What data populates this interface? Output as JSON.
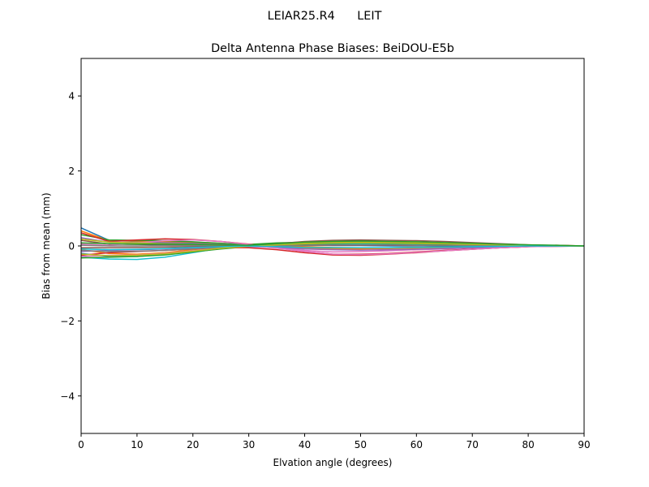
{
  "chart_data": {
    "type": "line",
    "suptitle": "LEIAR25.R4      LEIT",
    "title": "Delta Antenna Phase Biases: BeiDOU-E5b",
    "xlabel": "Elvation angle (degrees)",
    "ylabel": "Bias from mean (mm)",
    "xlim": [
      0,
      90
    ],
    "ylim": [
      -5,
      5
    ],
    "xticks": [
      0,
      10,
      20,
      30,
      40,
      50,
      60,
      70,
      80,
      90
    ],
    "xtick_labels": [
      "0",
      "10",
      "20",
      "30",
      "40",
      "50",
      "60",
      "70",
      "80",
      "90"
    ],
    "yticks": [
      -4,
      -2,
      0,
      2,
      4
    ],
    "ytick_labels": [
      "−4",
      "−2",
      "0",
      "2",
      "4"
    ],
    "grid": false,
    "legend": "none",
    "x": [
      0,
      5,
      10,
      15,
      20,
      25,
      30,
      35,
      40,
      45,
      50,
      55,
      60,
      65,
      70,
      75,
      80,
      85,
      90
    ],
    "series": [
      {
        "color": "#1f77b4",
        "values": [
          0.48,
          0.15,
          0.12,
          0.1,
          0.08,
          0.05,
          0.02,
          -0.02,
          -0.05,
          -0.07,
          -0.06,
          -0.05,
          -0.04,
          -0.03,
          -0.02,
          -0.01,
          0.0,
          0.0,
          0.0
        ]
      },
      {
        "color": "#ff7f0e",
        "values": [
          0.4,
          0.14,
          0.13,
          0.12,
          0.1,
          0.07,
          0.03,
          0.01,
          -0.02,
          -0.04,
          -0.05,
          -0.05,
          -0.04,
          -0.03,
          -0.02,
          -0.01,
          0.0,
          0.0,
          0.0
        ]
      },
      {
        "color": "#2ca02c",
        "values": [
          0.3,
          0.16,
          0.15,
          0.14,
          0.11,
          0.07,
          0.04,
          0.08,
          0.1,
          0.12,
          0.12,
          0.11,
          0.1,
          0.08,
          0.06,
          0.04,
          0.02,
          0.01,
          0.0
        ]
      },
      {
        "color": "#d62728",
        "values": [
          0.35,
          0.12,
          0.16,
          0.19,
          0.17,
          0.12,
          0.05,
          -0.05,
          -0.15,
          -0.22,
          -0.22,
          -0.2,
          -0.16,
          -0.12,
          -0.08,
          -0.05,
          -0.02,
          0.02,
          0.0
        ]
      },
      {
        "color": "#9467bd",
        "values": [
          0.22,
          0.1,
          0.09,
          0.08,
          0.06,
          0.04,
          0.02,
          0.05,
          0.08,
          0.1,
          0.11,
          0.1,
          0.09,
          0.07,
          0.05,
          0.03,
          0.02,
          0.01,
          0.0
        ]
      },
      {
        "color": "#8c564b",
        "values": [
          0.15,
          0.05,
          0.04,
          0.03,
          0.02,
          0.01,
          0.0,
          0.06,
          0.12,
          0.15,
          0.16,
          0.15,
          0.14,
          0.12,
          0.09,
          0.06,
          0.03,
          0.01,
          0.0
        ]
      },
      {
        "color": "#e377c2",
        "values": [
          0.05,
          0.02,
          0.08,
          0.14,
          0.16,
          0.12,
          0.04,
          -0.04,
          -0.12,
          -0.16,
          -0.15,
          -0.13,
          -0.1,
          -0.08,
          -0.05,
          -0.03,
          -0.01,
          0.0,
          0.0
        ]
      },
      {
        "color": "#7f7f7f",
        "values": [
          0.02,
          0.0,
          0.0,
          0.01,
          0.01,
          0.01,
          0.0,
          0.02,
          0.03,
          0.04,
          0.04,
          0.04,
          0.03,
          0.02,
          0.02,
          0.01,
          0.01,
          0.0,
          0.0
        ]
      },
      {
        "color": "#bcbd22",
        "values": [
          0.18,
          0.1,
          0.08,
          0.06,
          0.04,
          0.03,
          0.01,
          0.04,
          0.07,
          0.09,
          0.1,
          0.09,
          0.08,
          0.07,
          0.05,
          0.04,
          0.02,
          0.01,
          0.0
        ]
      },
      {
        "color": "#17becf",
        "values": [
          -0.3,
          -0.35,
          -0.36,
          -0.3,
          -0.18,
          -0.06,
          0.02,
          0.04,
          0.05,
          0.06,
          0.06,
          0.05,
          0.05,
          0.04,
          0.03,
          0.02,
          0.01,
          0.0,
          0.0
        ]
      },
      {
        "color": "#1f77b4",
        "values": [
          -0.2,
          -0.28,
          -0.28,
          -0.22,
          -0.14,
          -0.05,
          0.02,
          0.03,
          0.02,
          0.01,
          0.01,
          0.0,
          0.0,
          0.0,
          0.0,
          0.0,
          0.0,
          0.0,
          0.0
        ]
      },
      {
        "color": "#ff7f0e",
        "values": [
          -0.1,
          -0.2,
          -0.22,
          -0.18,
          -0.1,
          -0.04,
          0.0,
          -0.03,
          -0.06,
          -0.08,
          -0.08,
          -0.07,
          -0.06,
          -0.05,
          -0.03,
          -0.02,
          -0.01,
          0.0,
          0.0
        ]
      },
      {
        "color": "#2ca02c",
        "values": [
          -0.32,
          -0.3,
          -0.28,
          -0.24,
          -0.16,
          -0.08,
          -0.02,
          0.02,
          0.05,
          0.07,
          0.08,
          0.07,
          0.06,
          0.05,
          0.04,
          0.02,
          0.01,
          0.0,
          0.0
        ]
      },
      {
        "color": "#d62728",
        "values": [
          -0.25,
          -0.18,
          -0.15,
          -0.12,
          -0.08,
          -0.04,
          -0.05,
          -0.1,
          -0.18,
          -0.24,
          -0.25,
          -0.22,
          -0.18,
          -0.13,
          -0.09,
          -0.05,
          -0.02,
          -0.01,
          0.0
        ]
      },
      {
        "color": "#9467bd",
        "values": [
          -0.15,
          -0.12,
          -0.1,
          -0.08,
          -0.06,
          -0.03,
          -0.02,
          -0.04,
          -0.08,
          -0.1,
          -0.11,
          -0.1,
          -0.09,
          -0.07,
          -0.05,
          -0.03,
          -0.01,
          0.0,
          0.0
        ]
      },
      {
        "color": "#8c564b",
        "values": [
          -0.05,
          -0.05,
          -0.04,
          -0.03,
          -0.02,
          -0.01,
          0.0,
          0.01,
          0.01,
          0.02,
          0.02,
          0.02,
          0.01,
          0.01,
          0.01,
          0.0,
          0.0,
          0.0,
          0.0
        ]
      },
      {
        "color": "#e377c2",
        "values": [
          -0.28,
          -0.25,
          -0.24,
          -0.2,
          -0.13,
          -0.06,
          0.0,
          -0.06,
          -0.15,
          -0.22,
          -0.23,
          -0.21,
          -0.17,
          -0.13,
          -0.09,
          -0.05,
          -0.02,
          -0.01,
          0.0
        ]
      },
      {
        "color": "#7f7f7f",
        "values": [
          -0.12,
          -0.15,
          -0.14,
          -0.12,
          -0.08,
          -0.04,
          -0.01,
          0.0,
          0.02,
          0.03,
          0.03,
          0.03,
          0.02,
          0.02,
          0.01,
          0.01,
          0.0,
          0.0,
          0.0
        ]
      },
      {
        "color": "#bcbd22",
        "values": [
          -0.22,
          -0.26,
          -0.25,
          -0.21,
          -0.14,
          -0.06,
          -0.01,
          0.03,
          0.06,
          0.08,
          0.09,
          0.08,
          0.07,
          0.06,
          0.04,
          0.03,
          0.01,
          0.0,
          0.0
        ]
      },
      {
        "color": "#17becf",
        "values": [
          -0.08,
          -0.1,
          -0.09,
          -0.07,
          -0.04,
          -0.02,
          0.0,
          -0.02,
          -0.04,
          -0.05,
          -0.05,
          -0.05,
          -0.04,
          -0.03,
          -0.02,
          -0.01,
          0.0,
          0.0,
          0.0
        ]
      },
      {
        "color": "#2ca02c",
        "values": [
          0.08,
          0.06,
          0.05,
          0.05,
          0.04,
          0.03,
          0.02,
          0.06,
          0.1,
          0.12,
          0.13,
          0.12,
          0.11,
          0.09,
          0.07,
          0.05,
          0.03,
          0.02,
          0.0
        ]
      }
    ]
  }
}
